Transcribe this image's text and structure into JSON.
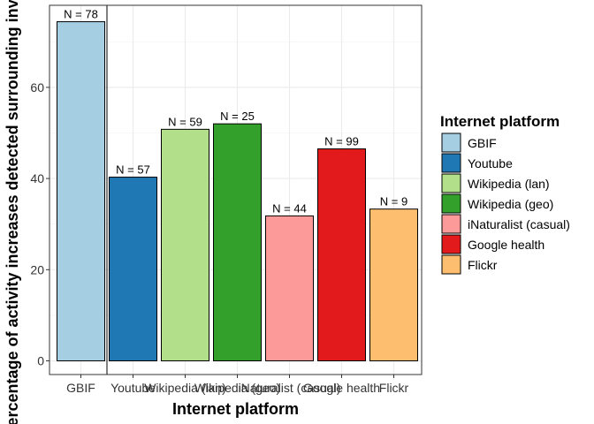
{
  "chart_data": {
    "type": "bar",
    "title": "",
    "xlabel": "Internet platform",
    "ylabel": "Percentage of activity increases detected surrounding inventions",
    "ylim": [
      -3,
      78
    ],
    "yticks": [
      0,
      20,
      40,
      60
    ],
    "grid": true,
    "legend_position": "right",
    "legend_title": "Internet platform",
    "categories": [
      "GBIF",
      "Youtube",
      "Wikipedia (lan)",
      "Wikipedia (geo)",
      "iNaturalist (casual)",
      "Google health",
      "Flickr"
    ],
    "values": [
      74.4,
      40.3,
      50.8,
      52.0,
      31.8,
      46.5,
      33.3
    ],
    "labels": [
      "N = 78",
      "N = 57",
      "N = 59",
      "N = 25",
      "N = 44",
      "N = 99",
      "N = 9"
    ],
    "colors": [
      "#A6CEE3",
      "#1F78B4",
      "#B2DF8A",
      "#33A02C",
      "#FB9A99",
      "#E31A1C",
      "#FDBF6F"
    ],
    "vline_after_category": "GBIF"
  }
}
